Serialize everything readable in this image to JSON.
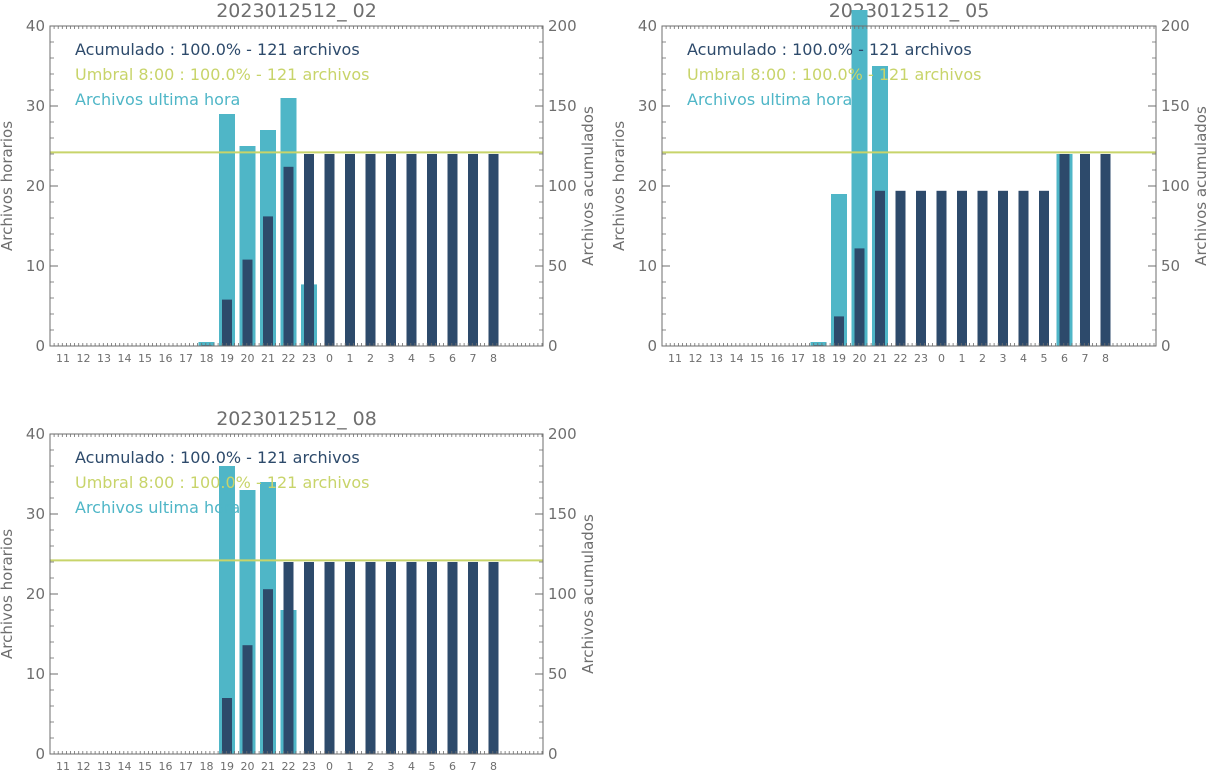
{
  "colors": {
    "hourly": "#4fb6c7",
    "cumulative": "#2d4a6b",
    "threshold": "#c8d46a",
    "axis": "#6e6e6e",
    "legend_acumulado": "#2d4a6b",
    "legend_umbral": "#c8d46a",
    "legend_ultima_hora": "#4fb6c7"
  },
  "chart_data": [
    {
      "type": "bar",
      "title": "2023012512_ 02",
      "categories": [
        "11",
        "12",
        "13",
        "14",
        "15",
        "16",
        "17",
        "18",
        "19",
        "20",
        "21",
        "22",
        "23",
        "0",
        "1",
        "2",
        "3",
        "4",
        "5",
        "6",
        "7",
        "8"
      ],
      "ylabel": "Archivos horarios",
      "y2label": "Archivos acumulados",
      "ylim": [
        0,
        40
      ],
      "y2lim": [
        0,
        200
      ],
      "yticks": [
        "0",
        "10",
        "20",
        "30",
        "40"
      ],
      "y2ticks": [
        "0",
        "50",
        "100",
        "150",
        "200"
      ],
      "threshold": 121,
      "legend": [
        "Acumulado : 100.0% - 121 archivos",
        "Umbral 8:00 : 100.0% - 121 archivos",
        "Archivos ultima hora"
      ],
      "series": [
        {
          "name": "Archivos ultima hora",
          "axis": "left",
          "values": [
            0,
            0,
            0,
            0,
            0,
            0,
            0,
            0.5,
            29,
            25,
            27,
            31,
            7.7,
            0,
            0,
            0,
            0,
            0,
            0,
            0,
            0,
            0
          ]
        },
        {
          "name": "Acumulado",
          "axis": "right",
          "values": [
            0,
            0,
            0,
            0,
            0,
            0,
            0,
            0.5,
            29,
            54,
            81,
            112,
            120,
            120,
            120,
            120,
            120,
            120,
            120,
            120,
            120,
            120
          ]
        }
      ]
    },
    {
      "type": "bar",
      "title": "2023012512_ 05",
      "categories": [
        "11",
        "12",
        "13",
        "14",
        "15",
        "16",
        "17",
        "18",
        "19",
        "20",
        "21",
        "22",
        "23",
        "0",
        "1",
        "2",
        "3",
        "4",
        "5",
        "6",
        "7",
        "8"
      ],
      "ylabel": "Archivos horarios",
      "y2label": "Archivos acumulados",
      "ylim": [
        0,
        40
      ],
      "y2lim": [
        0,
        200
      ],
      "yticks": [
        "0",
        "10",
        "20",
        "30",
        "40"
      ],
      "y2ticks": [
        "0",
        "50",
        "100",
        "150",
        "200"
      ],
      "threshold": 121,
      "legend": [
        "Acumulado : 100.0% - 121 archivos",
        "Umbral 8:00 : 100.0% - 121 archivos",
        "Archivos ultima hora"
      ],
      "series": [
        {
          "name": "Archivos ultima hora",
          "axis": "left",
          "values": [
            0,
            0,
            0,
            0,
            0,
            0,
            0,
            0.5,
            19,
            42,
            35,
            0,
            0,
            0,
            0,
            0,
            0,
            0,
            0,
            24,
            0,
            0
          ]
        },
        {
          "name": "Acumulado",
          "axis": "right",
          "values": [
            0,
            0,
            0,
            0,
            0,
            0,
            0,
            0.5,
            18.5,
            61,
            97,
            97,
            97,
            97,
            97,
            97,
            97,
            97,
            97,
            120,
            120,
            120
          ]
        }
      ]
    },
    {
      "type": "bar",
      "title": "2023012512_ 08",
      "categories": [
        "11",
        "12",
        "13",
        "14",
        "15",
        "16",
        "17",
        "18",
        "19",
        "20",
        "21",
        "22",
        "23",
        "0",
        "1",
        "2",
        "3",
        "4",
        "5",
        "6",
        "7",
        "8"
      ],
      "ylabel": "Archivos horarios",
      "y2label": "Archivos acumulados",
      "ylim": [
        0,
        40
      ],
      "y2lim": [
        0,
        200
      ],
      "yticks": [
        "0",
        "10",
        "20",
        "30",
        "40"
      ],
      "y2ticks": [
        "0",
        "50",
        "100",
        "150",
        "200"
      ],
      "threshold": 121,
      "legend": [
        "Acumulado : 100.0% - 121 archivos",
        "Umbral 8:00 : 100.0% - 121 archivos",
        "Archivos ultima hora"
      ],
      "series": [
        {
          "name": "Archivos ultima hora",
          "axis": "left",
          "values": [
            0,
            0,
            0,
            0,
            0,
            0,
            0,
            0,
            36,
            33,
            34,
            18,
            0,
            0,
            0,
            0,
            0,
            0,
            0,
            0,
            0,
            0
          ]
        },
        {
          "name": "Acumulado",
          "axis": "right",
          "values": [
            0,
            0,
            0,
            0,
            0,
            0,
            0,
            0,
            35,
            68,
            103,
            120,
            120,
            120,
            120,
            120,
            120,
            120,
            120,
            120,
            120,
            120
          ]
        }
      ]
    }
  ]
}
